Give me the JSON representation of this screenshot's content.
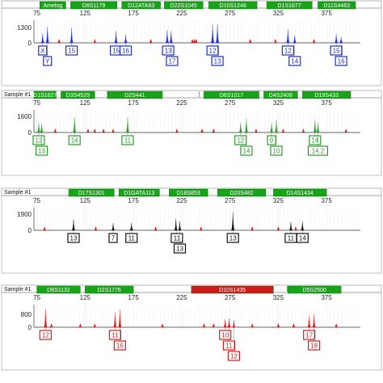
{
  "chart_data": [
    {
      "type": "electropherogram",
      "title": "",
      "x_ticks": [
        75,
        125,
        175,
        225,
        275,
        325,
        375
      ],
      "y_ticks": [
        1300,
        0
      ],
      "ymax": 1800,
      "color": "#1d2fc6",
      "markers": [
        {
          "label": "Amelog",
          "x0": 78,
          "x1": 105,
          "color": "#18a418"
        },
        {
          "label": "D8S1179",
          "x0": 110,
          "x1": 158,
          "color": "#18a418"
        },
        {
          "label": "D12ATA63",
          "x0": 163,
          "x1": 203,
          "color": "#18a418"
        },
        {
          "label": "D22S1045",
          "x0": 207,
          "x1": 247,
          "color": "#18a418"
        },
        {
          "label": "D10S1248",
          "x0": 253,
          "x1": 303,
          "color": "#18a418"
        },
        {
          "label": "D1S1677",
          "x0": 313,
          "x1": 360,
          "color": "#18a418"
        },
        {
          "label": "D11S4463",
          "x0": 366,
          "x1": 405,
          "color": "#18a418"
        }
      ],
      "peaks": [
        {
          "x": 81,
          "h": 800
        },
        {
          "x": 86,
          "h": 1350
        },
        {
          "x": 111,
          "h": 1250
        },
        {
          "x": 157,
          "h": 1000
        },
        {
          "x": 167,
          "h": 700
        },
        {
          "x": 210,
          "h": 1100
        },
        {
          "x": 214,
          "h": 1000
        },
        {
          "x": 257,
          "h": 1550
        },
        {
          "x": 262,
          "h": 1600
        },
        {
          "x": 335,
          "h": 1150
        },
        {
          "x": 342,
          "h": 650
        },
        {
          "x": 385,
          "h": 750
        },
        {
          "x": 390,
          "h": 500
        }
      ],
      "artifacts": [
        98,
        135,
        193,
        236,
        238,
        240,
        296,
        322,
        362
      ],
      "alleles": [
        {
          "text": "X",
          "x": 81,
          "row": 0
        },
        {
          "text": "Y",
          "x": 86,
          "row": 1
        },
        {
          "text": "15",
          "x": 111,
          "row": 0
        },
        {
          "text": "15",
          "x": 157,
          "row": 0
        },
        {
          "text": "16",
          "x": 167,
          "row": 0
        },
        {
          "text": "13",
          "x": 211,
          "row": 0
        },
        {
          "text": "17",
          "x": 215,
          "row": 1
        },
        {
          "text": "12",
          "x": 257,
          "row": 0
        },
        {
          "text": "13",
          "x": 262,
          "row": 1
        },
        {
          "text": "12",
          "x": 335,
          "row": 0
        },
        {
          "text": "14",
          "x": 342,
          "row": 1
        },
        {
          "text": "15",
          "x": 385,
          "row": 0
        },
        {
          "text": "16",
          "x": 390,
          "row": 1
        }
      ]
    },
    {
      "type": "electropherogram",
      "title": "Sample #1",
      "x_ticks": [
        75,
        125,
        175,
        225,
        275,
        325,
        375
      ],
      "y_ticks": [
        1600,
        0
      ],
      "ymax": 2100,
      "color": "#2a9e2a",
      "markers": [
        {
          "label": "D1S1627",
          "x0": 72,
          "x1": 95,
          "color": "#18a418"
        },
        {
          "label": "D3S4529",
          "x0": 100,
          "x1": 135,
          "color": "#18a418"
        },
        {
          "label": "D2S441",
          "x0": 148,
          "x1": 205,
          "color": "#18a418"
        },
        {
          "label": "D6S1017",
          "x0": 248,
          "x1": 305,
          "color": "#18a418"
        },
        {
          "label": "D4S2408",
          "x0": 310,
          "x1": 345,
          "color": "#18a418"
        },
        {
          "label": "D19S433",
          "x0": 350,
          "x1": 400,
          "color": "#18a418"
        }
      ],
      "peaks": [
        {
          "x": 77,
          "h": 1000
        },
        {
          "x": 80,
          "h": 900
        },
        {
          "x": 114,
          "h": 1550
        },
        {
          "x": 169,
          "h": 1550
        },
        {
          "x": 286,
          "h": 1000
        },
        {
          "x": 292,
          "h": 1400
        },
        {
          "x": 318,
          "h": 950
        },
        {
          "x": 323,
          "h": 1250
        },
        {
          "x": 363,
          "h": 1300
        },
        {
          "x": 366,
          "h": 1000
        }
      ],
      "artifacts": [
        94,
        128,
        135,
        144,
        154,
        220,
        246,
        258,
        302,
        330,
        351,
        395
      ],
      "alleles": [
        {
          "text": "12",
          "x": 77,
          "row": 0
        },
        {
          "text": "13",
          "x": 80,
          "row": 1
        },
        {
          "text": "14",
          "x": 114,
          "row": 0
        },
        {
          "text": "11",
          "x": 169,
          "row": 0
        },
        {
          "text": "12",
          "x": 286,
          "row": 0
        },
        {
          "text": "14",
          "x": 292,
          "row": 1
        },
        {
          "text": "9",
          "x": 318,
          "row": 0
        },
        {
          "text": "10",
          "x": 323,
          "row": 1
        },
        {
          "text": "14",
          "x": 363,
          "row": 0
        },
        {
          "text": "14.2",
          "x": 366,
          "row": 1
        }
      ]
    },
    {
      "type": "electropherogram",
      "title": "Sample #1",
      "x_ticks": [
        75,
        125,
        175,
        225,
        275,
        325,
        375
      ],
      "y_ticks": [
        1900,
        0
      ],
      "ymax": 2500,
      "color": "#111111",
      "markers": [
        {
          "label": "D17S1301",
          "x0": 108,
          "x1": 155,
          "color": "#18a418"
        },
        {
          "label": "D1GATA113",
          "x0": 160,
          "x1": 202,
          "color": "#18a418"
        },
        {
          "label": "D18S853",
          "x0": 212,
          "x1": 252,
          "color": "#18a418"
        },
        {
          "label": "D20S482",
          "x0": 262,
          "x1": 312,
          "color": "#18a418"
        },
        {
          "label": "D14S1434",
          "x0": 320,
          "x1": 375,
          "color": "#18a418"
        }
      ],
      "peaks": [
        {
          "x": 113,
          "h": 1300
        },
        {
          "x": 154,
          "h": 850
        },
        {
          "x": 173,
          "h": 900
        },
        {
          "x": 219,
          "h": 1400
        },
        {
          "x": 223,
          "h": 1050
        },
        {
          "x": 278,
          "h": 2150
        },
        {
          "x": 338,
          "h": 1000
        },
        {
          "x": 350,
          "h": 1050
        }
      ],
      "artifacts": [
        83,
        136,
        198,
        245,
        298,
        325,
        343
      ],
      "alleles": [
        {
          "text": "13",
          "x": 113,
          "row": 0
        },
        {
          "text": "7",
          "x": 154,
          "row": 0
        },
        {
          "text": "11",
          "x": 173,
          "row": 0
        },
        {
          "text": "11",
          "x": 220,
          "row": 0
        },
        {
          "text": "13",
          "x": 223,
          "row": 1
        },
        {
          "text": "13",
          "x": 278,
          "row": 0
        },
        {
          "text": "11",
          "x": 338,
          "row": 0
        },
        {
          "text": "14",
          "x": 350,
          "row": 0
        }
      ]
    },
    {
      "type": "electropherogram",
      "title": "Sample #1",
      "x_ticks": [
        75,
        125,
        175,
        225,
        275,
        325,
        375
      ],
      "y_ticks": [
        800,
        0
      ],
      "ymax": 1300,
      "color": "#d41d1d",
      "markers": [
        {
          "label": "D6S1132",
          "x0": 75,
          "x1": 120,
          "color": "#18a418"
        },
        {
          "label": "D2S1776",
          "x0": 125,
          "x1": 175,
          "color": "#18a418"
        },
        {
          "label": "D10S1435",
          "x0": 235,
          "x1": 320,
          "color": "#cf1a1a"
        },
        {
          "label": "D5S2500",
          "x0": 335,
          "x1": 390,
          "color": "#18a418"
        }
      ],
      "peaks": [
        {
          "x": 84,
          "h": 1150
        },
        {
          "x": 156,
          "h": 900
        },
        {
          "x": 161,
          "h": 1100
        },
        {
          "x": 270,
          "h": 500
        },
        {
          "x": 274,
          "h": 550
        },
        {
          "x": 279,
          "h": 450
        },
        {
          "x": 357,
          "h": 700
        },
        {
          "x": 362,
          "h": 800
        }
      ],
      "artifacts": [
        90,
        120,
        135,
        205,
        248,
        258,
        298,
        325,
        341,
        385
      ],
      "alleles": [
        {
          "text": "12",
          "x": 84,
          "row": 0
        },
        {
          "text": "11",
          "x": 156,
          "row": 0
        },
        {
          "text": "16",
          "x": 161,
          "row": 1
        },
        {
          "text": "10",
          "x": 270,
          "row": 0
        },
        {
          "text": "11",
          "x": 274,
          "row": 1
        },
        {
          "text": "12",
          "x": 279,
          "row": 2
        },
        {
          "text": "17",
          "x": 357,
          "row": 0
        },
        {
          "text": "18",
          "x": 362,
          "row": 1
        }
      ]
    }
  ]
}
